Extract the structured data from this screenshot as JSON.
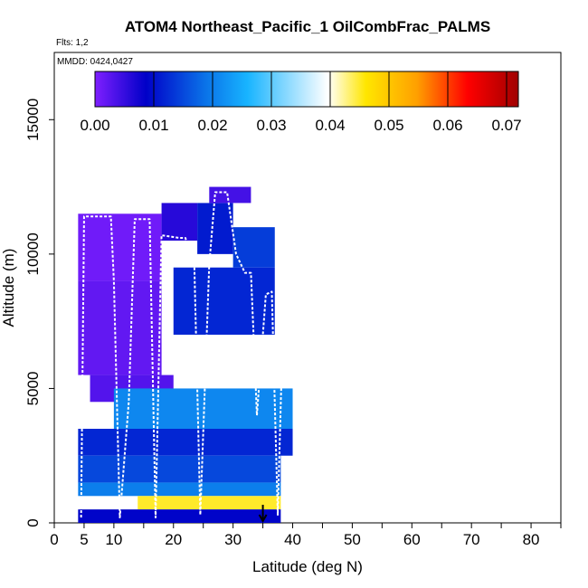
{
  "chart_data": {
    "type": "heatmap",
    "title": "ATOM4 Northeast_Pacific_1 OilCombFrac_PALMS",
    "subtitle_flights": "Flts: 1,2",
    "subtitle_dates": "MMDD: 0424,0427",
    "xlabel": "Latitude (deg N)",
    "ylabel": "Altitude (m)",
    "xlim": [
      0,
      85
    ],
    "ylim": [
      0,
      17500
    ],
    "x_ticks": [
      0,
      5,
      10,
      20,
      30,
      40,
      50,
      60,
      70,
      80
    ],
    "y_ticks": [
      0,
      5000,
      10000,
      15000
    ],
    "colorbar": {
      "min": 0,
      "max": 0.072,
      "ticks": [
        "0.00",
        "0.01",
        "0.02",
        "0.03",
        "0.04",
        "0.05",
        "0.06",
        "0.07"
      ],
      "tick_values": [
        0,
        0.01,
        0.02,
        0.03,
        0.04,
        0.05,
        0.06,
        0.07
      ],
      "colors": [
        "#7f1fff",
        "#0000c8",
        "#0a72e8",
        "#18b4ff",
        "#ffffff",
        "#ffe600",
        "#ffa000",
        "#ff0000",
        "#a00000"
      ],
      "color_stops": [
        0,
        0.12,
        0.26,
        0.36,
        0.55,
        0.64,
        0.76,
        0.88,
        1.0
      ]
    },
    "cells": [
      {
        "lat": [
          4,
          18
        ],
        "alt": [
          9000,
          11500
        ],
        "value": 0.001
      },
      {
        "lat": [
          4,
          18
        ],
        "alt": [
          5500,
          9000
        ],
        "value": 0.002
      },
      {
        "lat": [
          18,
          24
        ],
        "alt": [
          10500,
          11900
        ],
        "value": 0.006
      },
      {
        "lat": [
          24,
          30
        ],
        "alt": [
          10000,
          11900
        ],
        "value": 0.011
      },
      {
        "lat": [
          30,
          37
        ],
        "alt": [
          9500,
          11000
        ],
        "value": 0.014
      },
      {
        "lat": [
          20,
          37
        ],
        "alt": [
          7000,
          9500
        ],
        "value": 0.012
      },
      {
        "lat": [
          6,
          20
        ],
        "alt": [
          4500,
          5500
        ],
        "value": 0.003
      },
      {
        "lat": [
          10,
          40
        ],
        "alt": [
          3500,
          5000
        ],
        "value": 0.021
      },
      {
        "lat": [
          4,
          40
        ],
        "alt": [
          2500,
          3500
        ],
        "value": 0.012
      },
      {
        "lat": [
          4,
          38
        ],
        "alt": [
          1500,
          2500
        ],
        "value": 0.015
      },
      {
        "lat": [
          4,
          38
        ],
        "alt": [
          1000,
          1500
        ],
        "value": 0.02
      },
      {
        "lat": [
          14,
          38
        ],
        "alt": [
          500,
          1000
        ],
        "value": 0.045
      },
      {
        "lat": [
          4,
          38
        ],
        "alt": [
          0,
          500
        ],
        "value": 0.009
      },
      {
        "lat": [
          26,
          33
        ],
        "alt": [
          11900,
          12500
        ],
        "value": 0.004
      }
    ],
    "flight_tracks": [
      {
        "lat": [
          4.5,
          5,
          9.5,
          10,
          11,
          12.5,
          13.5,
          16,
          17,
          18,
          21,
          22,
          23.5,
          24.5,
          26,
          27,
          29,
          30.5,
          32,
          33,
          34,
          35.5,
          36.5,
          37.5,
          38.5
        ],
        "alt": [
          200,
          11400,
          11400,
          9000,
          200,
          4500,
          11300,
          11300,
          200,
          10700,
          10600,
          10600,
          9600,
          300,
          9600,
          12300,
          12300,
          10000,
          9300,
          9300,
          4000,
          8500,
          8600,
          300,
          8500
        ]
      }
    ],
    "marker": {
      "label": "arrow",
      "lat": 35,
      "alt": 0
    }
  }
}
